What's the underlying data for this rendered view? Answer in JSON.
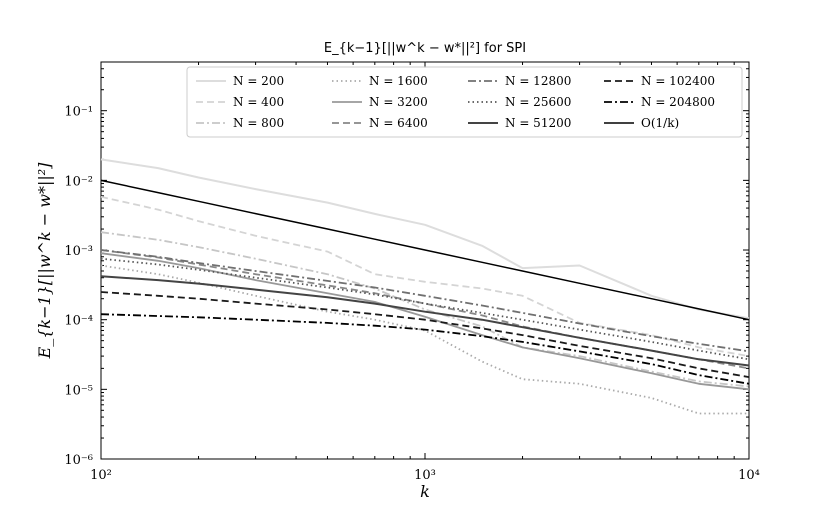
{
  "chart_data": {
    "type": "line",
    "title": "E_{k−1}[||w^k − w*||²] for SPI",
    "xlabel": "k",
    "ylabel": "E_{k−1}[||w^k − w*||²]",
    "xscale": "log",
    "yscale": "log",
    "xlim": [
      100,
      10000
    ],
    "ylim": [
      1e-06,
      0.5
    ],
    "x_ticks": [
      {
        "value": 100,
        "label": "10²"
      },
      {
        "value": 1000,
        "label": "10³"
      },
      {
        "value": 10000,
        "label": "10⁴"
      }
    ],
    "y_ticks": [
      {
        "value": 1e-06,
        "label": "10⁻⁶"
      },
      {
        "value": 1e-05,
        "label": "10⁻⁵"
      },
      {
        "value": 0.0001,
        "label": "10⁻⁴"
      },
      {
        "value": 0.001,
        "label": "10⁻³"
      },
      {
        "value": 0.01,
        "label": "10⁻²"
      },
      {
        "value": 0.1,
        "label": "10⁻¹"
      }
    ],
    "legend": {
      "position": "top-right",
      "columns": 4
    },
    "x": [
      100,
      150,
      200,
      300,
      500,
      700,
      1000,
      1500,
      2000,
      3000,
      5000,
      7000,
      10000
    ],
    "series": [
      {
        "name": "N = 200",
        "color": "#dddddd",
        "dash": "solid",
        "width": 2,
        "values": [
          0.02,
          0.015,
          0.011,
          0.0075,
          0.0048,
          0.0033,
          0.0023,
          0.00115,
          0.00055,
          0.0006,
          0.00022,
          0.00014,
          0.000105
        ]
      },
      {
        "name": "N = 400",
        "color": "#d4d4d4",
        "dash": "dashed",
        "width": 1.8,
        "values": [
          0.0058,
          0.0038,
          0.0026,
          0.0016,
          0.00095,
          0.00045,
          0.00035,
          0.00028,
          0.00022,
          9e-05,
          6e-05,
          4e-05,
          3e-05
        ]
      },
      {
        "name": "N = 800",
        "color": "#c6c6c6",
        "dash": "dashdot",
        "width": 1.8,
        "values": [
          0.0018,
          0.0014,
          0.0011,
          0.00075,
          0.00045,
          0.00028,
          0.00014,
          8e-05,
          4e-05,
          3e-05,
          1.8e-05,
          1.3e-05,
          1.1e-05
        ]
      },
      {
        "name": "N = 1600",
        "color": "#aaaaaa",
        "dash": "dotted",
        "width": 1.8,
        "values": [
          0.0006,
          0.00045,
          0.00034,
          0.00022,
          0.00013,
          0.0001,
          7e-05,
          2.5e-05,
          1.4e-05,
          1.2e-05,
          7.5e-06,
          4.5e-06,
          4.5e-06
        ]
      },
      {
        "name": "N = 3200",
        "color": "#999999",
        "dash": "solid",
        "width": 1.8,
        "values": [
          0.0009,
          0.0007,
          0.00055,
          0.00037,
          0.00024,
          0.00018,
          0.00011,
          6e-05,
          4e-05,
          2.8e-05,
          1.7e-05,
          1.2e-05,
          1e-05
        ]
      },
      {
        "name": "N = 6400",
        "color": "#888888",
        "dash": "dashed",
        "width": 1.8,
        "values": [
          0.001,
          0.00078,
          0.00062,
          0.00045,
          0.00031,
          0.00024,
          0.00017,
          0.000115,
          8e-05,
          5.5e-05,
          3.6e-05,
          2.7e-05,
          2e-05
        ]
      },
      {
        "name": "N = 12800",
        "color": "#707070",
        "dash": "dashdot",
        "width": 1.8,
        "values": [
          0.001,
          0.0008,
          0.00065,
          0.0005,
          0.00036,
          0.00029,
          0.00022,
          0.00016,
          0.000125,
          8.8e-05,
          5.8e-05,
          4.5e-05,
          3.5e-05
        ]
      },
      {
        "name": "N = 25600",
        "color": "#555555",
        "dash": "dotted",
        "width": 1.8,
        "values": [
          0.00075,
          0.00062,
          0.00052,
          0.0004,
          0.00029,
          0.00023,
          0.00017,
          0.000125,
          0.0001,
          7.2e-05,
          4.8e-05,
          3.6e-05,
          2.7e-05
        ]
      },
      {
        "name": "N = 51200",
        "color": "#444444",
        "dash": "solid",
        "width": 2,
        "values": [
          0.00042,
          0.00037,
          0.00033,
          0.00027,
          0.00021,
          0.00017,
          0.00013,
          0.0001,
          7.8e-05,
          5.5e-05,
          3.6e-05,
          2.7e-05,
          2.2e-05
        ]
      },
      {
        "name": "N = 102400",
        "color": "#1a1a1a",
        "dash": "dashed",
        "width": 1.8,
        "values": [
          0.00025,
          0.00022,
          0.0002,
          0.00017,
          0.00014,
          0.00012,
          0.0001,
          7.5e-05,
          6e-05,
          4.2e-05,
          2.8e-05,
          2e-05,
          1.5e-05
        ]
      },
      {
        "name": "N = 204800",
        "color": "#000000",
        "dash": "dashdot",
        "width": 1.8,
        "values": [
          0.00012,
          0.000113,
          0.000108,
          0.0001,
          9e-05,
          8.2e-05,
          7.2e-05,
          5.8e-05,
          4.8e-05,
          3.5e-05,
          2.3e-05,
          1.6e-05,
          1.2e-05
        ]
      },
      {
        "name": "O(1/k)",
        "color": "#000000",
        "dash": "solid",
        "width": 1.5,
        "values": [
          0.01,
          0.00667,
          0.005,
          0.00333,
          0.002,
          0.00143,
          0.001,
          0.000667,
          0.0005,
          0.000333,
          0.0002,
          0.000143,
          0.0001
        ]
      }
    ]
  }
}
